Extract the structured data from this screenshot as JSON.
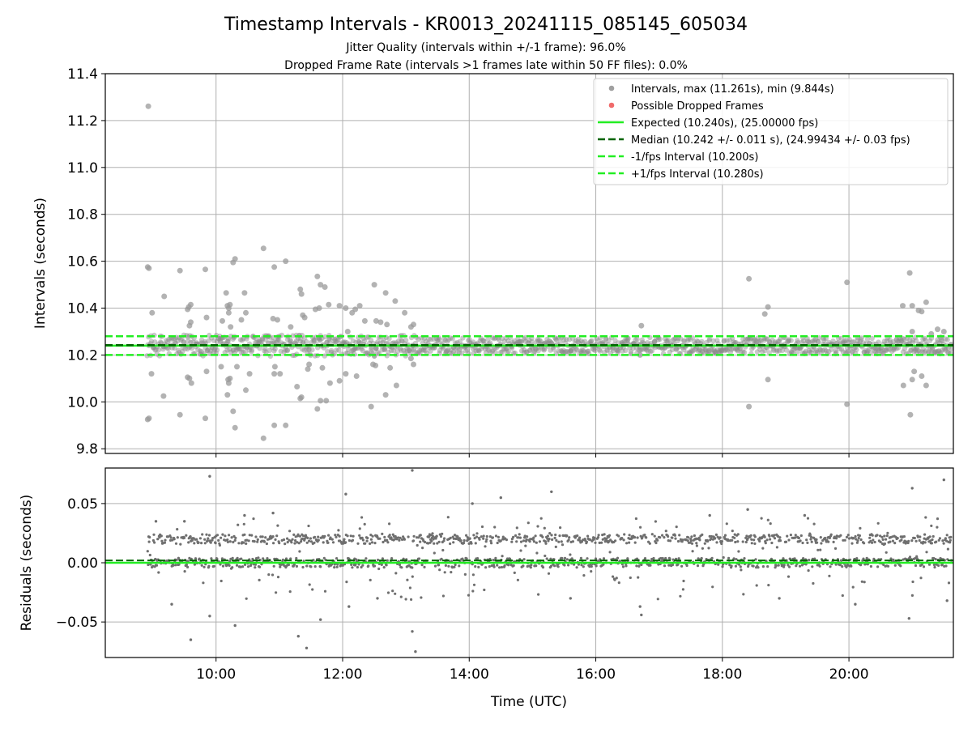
{
  "chart_data": [
    {
      "type": "scatter",
      "title": "Timestamp Intervals - KR0013_20241115_085145_605034",
      "subtitle_lines": [
        "Jitter Quality (intervals within +/-1 frame): 96.0%",
        "Dropped Frame Rate (intervals >1 frames late within 50 FF files): 0.0%"
      ],
      "xlabel": "",
      "ylabel": "Intervals (seconds)",
      "xlim_hours": [
        8.25,
        21.65
      ],
      "ylim": [
        9.78,
        11.4
      ],
      "yticks": [
        9.8,
        10.0,
        10.2,
        10.4,
        10.6,
        10.8,
        11.0,
        11.2,
        11.4
      ],
      "ytick_labels": [
        "9.8",
        "10.0",
        "10.2",
        "10.4",
        "10.6",
        "10.8",
        "11.0",
        "11.2",
        "11.4"
      ],
      "xticks_hours": [
        10,
        12,
        14,
        16,
        18,
        20
      ],
      "grid": true,
      "legend_position": "top-right",
      "legend": [
        {
          "label": "Intervals, max (11.261s), min (9.844s)",
          "kind": "marker",
          "color": "#a0a0a0"
        },
        {
          "label": "Possible Dropped Frames",
          "kind": "marker",
          "color": "#f06a6a"
        },
        {
          "label": "Expected (10.240s), (25.00000 fps)",
          "kind": "solid",
          "color": "#22ee22"
        },
        {
          "label": "Median (10.242 +/- 0.011 s), (24.99434 +/- 0.03 fps)",
          "kind": "dashed",
          "color": "#006400"
        },
        {
          "label": "-1/fps Interval (10.200s)",
          "kind": "dashed",
          "color": "#22ee22"
        },
        {
          "label": "+1/fps Interval (10.280s)",
          "kind": "dashed",
          "color": "#22ee22"
        }
      ],
      "reference_lines": {
        "expected": 10.24,
        "median": 10.242,
        "minus_one_fps": 10.2,
        "plus_one_fps": 10.28
      },
      "interval_points": [
        [
          8.93,
          11.261
        ],
        [
          8.92,
          10.575
        ],
        [
          8.94,
          10.57
        ],
        [
          8.92,
          9.925
        ],
        [
          8.94,
          9.93
        ],
        [
          8.99,
          10.38
        ],
        [
          8.98,
          10.12
        ],
        [
          9.18,
          10.45
        ],
        [
          9.17,
          10.025
        ],
        [
          9.43,
          10.56
        ],
        [
          9.43,
          9.945
        ],
        [
          9.55,
          10.395
        ],
        [
          9.57,
          10.405
        ],
        [
          9.6,
          10.415
        ],
        [
          9.55,
          10.105
        ],
        [
          9.58,
          10.1
        ],
        [
          9.61,
          10.08
        ],
        [
          9.58,
          10.325
        ],
        [
          9.6,
          10.34
        ],
        [
          9.77,
          10.25
        ],
        [
          9.83,
          10.565
        ],
        [
          9.83,
          9.93
        ],
        [
          9.85,
          10.36
        ],
        [
          9.85,
          10.13
        ],
        [
          10.1,
          10.345
        ],
        [
          10.08,
          10.15
        ],
        [
          10.16,
          10.465
        ],
        [
          10.18,
          10.41
        ],
        [
          10.2,
          10.4
        ],
        [
          10.22,
          10.415
        ],
        [
          10.2,
          10.38
        ],
        [
          10.19,
          10.095
        ],
        [
          10.2,
          10.08
        ],
        [
          10.22,
          10.1
        ],
        [
          10.18,
          10.03
        ],
        [
          10.23,
          10.32
        ],
        [
          10.27,
          10.595
        ],
        [
          10.3,
          10.61
        ],
        [
          10.27,
          9.96
        ],
        [
          10.3,
          9.89
        ],
        [
          10.33,
          10.15
        ],
        [
          10.4,
          10.35
        ],
        [
          10.45,
          10.465
        ],
        [
          10.47,
          10.38
        ],
        [
          10.47,
          10.05
        ],
        [
          10.53,
          10.12
        ],
        [
          10.75,
          10.655
        ],
        [
          10.75,
          9.845
        ],
        [
          10.83,
          10.25
        ],
        [
          10.92,
          10.575
        ],
        [
          10.9,
          10.355
        ],
        [
          10.97,
          10.35
        ],
        [
          10.93,
          10.15
        ],
        [
          11.01,
          10.12
        ],
        [
          10.92,
          10.12
        ],
        [
          10.92,
          9.9
        ],
        [
          11.1,
          10.6
        ],
        [
          11.1,
          9.9
        ],
        [
          11.18,
          10.32
        ],
        [
          11.25,
          10.25
        ],
        [
          11.33,
          10.48
        ],
        [
          11.35,
          10.46
        ],
        [
          11.37,
          10.37
        ],
        [
          11.4,
          10.36
        ],
        [
          11.35,
          10.02
        ],
        [
          11.33,
          10.015
        ],
        [
          11.28,
          10.065
        ],
        [
          11.47,
          10.16
        ],
        [
          11.45,
          10.14
        ],
        [
          11.6,
          10.535
        ],
        [
          11.65,
          10.5
        ],
        [
          11.72,
          10.49
        ],
        [
          11.57,
          10.395
        ],
        [
          11.63,
          10.4
        ],
        [
          11.65,
          10.005
        ],
        [
          11.74,
          10.005
        ],
        [
          11.6,
          9.97
        ],
        [
          11.68,
          10.145
        ],
        [
          11.78,
          10.415
        ],
        [
          11.8,
          10.08
        ],
        [
          11.95,
          10.41
        ],
        [
          11.95,
          10.09
        ],
        [
          12.05,
          10.4
        ],
        [
          12.08,
          10.3
        ],
        [
          12.05,
          10.12
        ],
        [
          12.15,
          10.38
        ],
        [
          12.2,
          10.395
        ],
        [
          12.27,
          10.41
        ],
        [
          12.22,
          10.11
        ],
        [
          12.35,
          10.345
        ],
        [
          12.5,
          10.5
        ],
        [
          12.48,
          10.16
        ],
        [
          12.53,
          10.345
        ],
        [
          12.6,
          10.34
        ],
        [
          12.52,
          10.155
        ],
        [
          12.45,
          9.98
        ],
        [
          12.68,
          10.465
        ],
        [
          12.7,
          10.33
        ],
        [
          12.68,
          10.03
        ],
        [
          12.75,
          10.145
        ],
        [
          12.83,
          10.43
        ],
        [
          12.85,
          10.07
        ],
        [
          12.98,
          10.38
        ],
        [
          13.08,
          10.32
        ],
        [
          13.12,
          10.33
        ],
        [
          13.08,
          10.185
        ],
        [
          13.12,
          10.16
        ],
        [
          16.72,
          10.325
        ],
        [
          16.7,
          10.2
        ],
        [
          18.42,
          10.525
        ],
        [
          18.42,
          9.98
        ],
        [
          18.67,
          10.375
        ],
        [
          18.72,
          10.405
        ],
        [
          18.72,
          10.095
        ],
        [
          19.97,
          10.51
        ],
        [
          19.97,
          9.99
        ],
        [
          20.85,
          10.41
        ],
        [
          20.96,
          10.55
        ],
        [
          21.0,
          10.41
        ],
        [
          21.0,
          10.095
        ],
        [
          20.86,
          10.07
        ],
        [
          20.97,
          9.945
        ],
        [
          21.03,
          10.13
        ],
        [
          21.0,
          10.3
        ],
        [
          21.15,
          10.385
        ],
        [
          21.15,
          10.11
        ],
        [
          21.1,
          10.39
        ],
        [
          21.22,
          10.425
        ],
        [
          21.22,
          10.07
        ],
        [
          21.3,
          10.29
        ],
        [
          21.4,
          10.31
        ],
        [
          21.45,
          10.275
        ],
        [
          21.5,
          10.3
        ]
      ],
      "dropped_frame_points": []
    },
    {
      "type": "scatter",
      "title": "",
      "xlabel": "Time (UTC)",
      "ylabel": "Residuals (seconds)",
      "xlim_hours": [
        8.25,
        21.65
      ],
      "ylim": [
        -0.08,
        0.08
      ],
      "yticks": [
        -0.05,
        0.0,
        0.05
      ],
      "ytick_labels": [
        "−0.05",
        "0.00",
        "0.05"
      ],
      "xticks_hours": [
        10,
        12,
        14,
        16,
        18,
        20
      ],
      "xtick_labels": [
        "10:00",
        "12:00",
        "14:00",
        "16:00",
        "18:00",
        "20:00"
      ],
      "grid": true,
      "reference_lines": {
        "zero": 0.0,
        "median_offset": 0.002
      },
      "residual_bands": [
        0.02,
        0.0
      ],
      "residual_outliers": [
        [
          9.05,
          0.035
        ],
        [
          9.3,
          -0.035
        ],
        [
          9.5,
          0.035
        ],
        [
          9.6,
          -0.065
        ],
        [
          9.9,
          0.073
        ],
        [
          9.9,
          -0.045
        ],
        [
          10.3,
          -0.053
        ],
        [
          10.45,
          0.04
        ],
        [
          10.9,
          0.042
        ],
        [
          11.3,
          -0.062
        ],
        [
          11.43,
          -0.072
        ],
        [
          11.65,
          -0.048
        ],
        [
          12.05,
          0.058
        ],
        [
          12.1,
          -0.037
        ],
        [
          12.55,
          -0.03
        ],
        [
          13.1,
          0.078
        ],
        [
          13.1,
          -0.058
        ],
        [
          13.15,
          -0.075
        ],
        [
          14.05,
          0.05
        ],
        [
          14.5,
          0.055
        ],
        [
          15.3,
          0.06
        ],
        [
          15.6,
          -0.03
        ],
        [
          16.7,
          -0.037
        ],
        [
          16.72,
          -0.044
        ],
        [
          17.8,
          0.04
        ],
        [
          18.4,
          0.045
        ],
        [
          18.9,
          -0.03
        ],
        [
          19.3,
          0.04
        ],
        [
          20.1,
          -0.035
        ],
        [
          20.95,
          -0.047
        ],
        [
          21.0,
          0.063
        ],
        [
          21.5,
          0.07
        ],
        [
          21.55,
          -0.032
        ]
      ]
    }
  ]
}
